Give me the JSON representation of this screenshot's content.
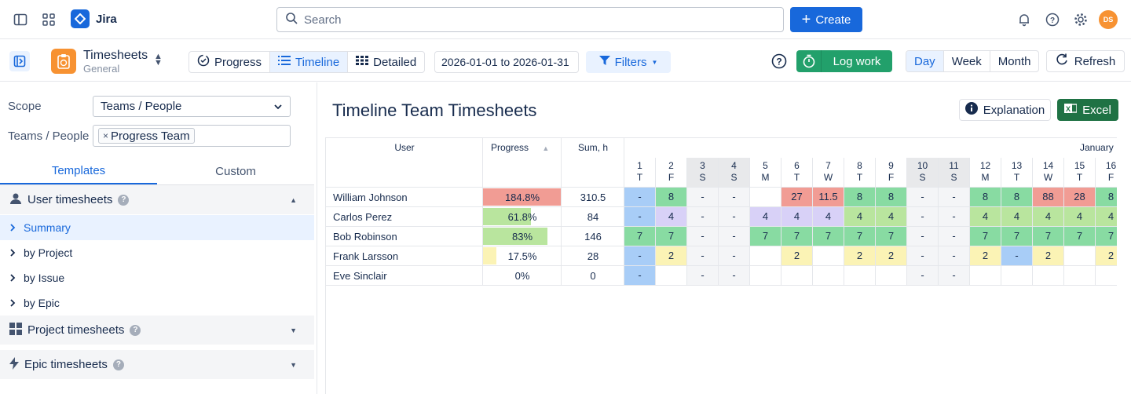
{
  "topbar": {
    "app_name": "Jira",
    "search_placeholder": "Search",
    "create_label": "Create",
    "avatar_initials": "DS"
  },
  "toolbar": {
    "title": "Timesheets",
    "subtitle": "General",
    "views": [
      {
        "label": "Progress",
        "active": false
      },
      {
        "label": "Timeline",
        "active": true
      },
      {
        "label": "Detailed",
        "active": false
      }
    ],
    "date_range": "2026-01-01 to 2026-01-31",
    "filters_label": "Filters",
    "log_work_label": "Log work",
    "periods": [
      {
        "label": "Day",
        "active": true
      },
      {
        "label": "Week",
        "active": false
      },
      {
        "label": "Month",
        "active": false
      }
    ],
    "refresh_label": "Refresh"
  },
  "sidebar": {
    "scope_label": "Scope",
    "scope_value": "Teams / People",
    "teams_label": "Teams / People",
    "teams_chip": "Progress Team",
    "tabs": [
      "Templates",
      "Custom"
    ],
    "sections": {
      "user": "User timesheets",
      "project": "Project timesheets",
      "epic": "Epic timesheets"
    },
    "items": [
      "Summary",
      "by Project",
      "by Issue",
      "by Epic"
    ]
  },
  "main": {
    "title": "Timeline Team Timesheets",
    "explanation_label": "Explanation",
    "excel_label": "Excel",
    "col_user": "User",
    "col_progress": "Progress",
    "col_sum": "Sum, h",
    "month": "January",
    "days": [
      {
        "n": "1",
        "d": "T",
        "we": false
      },
      {
        "n": "2",
        "d": "F",
        "we": false
      },
      {
        "n": "3",
        "d": "S",
        "we": true
      },
      {
        "n": "4",
        "d": "S",
        "we": true
      },
      {
        "n": "5",
        "d": "M",
        "we": false
      },
      {
        "n": "6",
        "d": "T",
        "we": false
      },
      {
        "n": "7",
        "d": "W",
        "we": false
      },
      {
        "n": "8",
        "d": "T",
        "we": false
      },
      {
        "n": "9",
        "d": "F",
        "we": false
      },
      {
        "n": "10",
        "d": "S",
        "we": true
      },
      {
        "n": "11",
        "d": "S",
        "we": true
      },
      {
        "n": "12",
        "d": "M",
        "we": false
      },
      {
        "n": "13",
        "d": "T",
        "we": false
      },
      {
        "n": "14",
        "d": "W",
        "we": false
      },
      {
        "n": "15",
        "d": "T",
        "we": false
      },
      {
        "n": "16",
        "d": "F",
        "we": false
      }
    ],
    "rows": [
      {
        "user": "William Johnson",
        "progress": "184.8%",
        "progress_fraction": 1.0,
        "progress_color": "#f19c94",
        "sum": "310.5",
        "cells": [
          [
            "-",
            "blue"
          ],
          [
            "8",
            "green"
          ],
          [
            "-",
            "we"
          ],
          [
            "-",
            "we"
          ],
          [
            "",
            ""
          ],
          [
            "27",
            "red"
          ],
          [
            "11.5",
            "red"
          ],
          [
            "8",
            "green"
          ],
          [
            "8",
            "green"
          ],
          [
            "-",
            "we"
          ],
          [
            "-",
            "we"
          ],
          [
            "8",
            "green"
          ],
          [
            "8",
            "green"
          ],
          [
            "88",
            "red"
          ],
          [
            "28",
            "red"
          ],
          [
            "8",
            "green"
          ]
        ]
      },
      {
        "user": "Carlos Perez",
        "progress": "61.8%",
        "progress_fraction": 0.618,
        "progress_color": "#b9e59e",
        "sum": "84",
        "cells": [
          [
            "-",
            "blue"
          ],
          [
            "4",
            "purple"
          ],
          [
            "-",
            "we"
          ],
          [
            "-",
            "we"
          ],
          [
            "4",
            "purple"
          ],
          [
            "4",
            "purple"
          ],
          [
            "4",
            "purple"
          ],
          [
            "4",
            "lgreen"
          ],
          [
            "4",
            "lgreen"
          ],
          [
            "-",
            "we"
          ],
          [
            "-",
            "we"
          ],
          [
            "4",
            "lgreen"
          ],
          [
            "4",
            "lgreen"
          ],
          [
            "4",
            "lgreen"
          ],
          [
            "4",
            "lgreen"
          ],
          [
            "4",
            "lgreen"
          ]
        ]
      },
      {
        "user": "Bob Robinson",
        "progress": "83%",
        "progress_fraction": 0.83,
        "progress_color": "#b9e59e",
        "sum": "146",
        "cells": [
          [
            "7",
            "green"
          ],
          [
            "7",
            "green"
          ],
          [
            "-",
            "we"
          ],
          [
            "-",
            "we"
          ],
          [
            "7",
            "green"
          ],
          [
            "7",
            "green"
          ],
          [
            "7",
            "green"
          ],
          [
            "7",
            "green"
          ],
          [
            "7",
            "green"
          ],
          [
            "-",
            "we"
          ],
          [
            "-",
            "we"
          ],
          [
            "7",
            "green"
          ],
          [
            "7",
            "green"
          ],
          [
            "7",
            "green"
          ],
          [
            "7",
            "green"
          ],
          [
            "7",
            "green"
          ]
        ]
      },
      {
        "user": "Frank Larsson",
        "progress": "17.5%",
        "progress_fraction": 0.175,
        "progress_color": "#fbf3b5",
        "sum": "28",
        "cells": [
          [
            "-",
            "blue"
          ],
          [
            "2",
            "yellow"
          ],
          [
            "-",
            "we"
          ],
          [
            "-",
            "we"
          ],
          [
            "",
            ""
          ],
          [
            "2",
            "yellow"
          ],
          [
            "",
            ""
          ],
          [
            "2",
            "yellow"
          ],
          [
            "2",
            "yellow"
          ],
          [
            "-",
            "we"
          ],
          [
            "-",
            "we"
          ],
          [
            "2",
            "yellow"
          ],
          [
            "-",
            "blue"
          ],
          [
            "2",
            "yellow"
          ],
          [
            "",
            ""
          ],
          [
            "2",
            "yellow"
          ]
        ]
      },
      {
        "user": "Eve Sinclair",
        "progress": "0%",
        "progress_fraction": 0,
        "progress_color": "#fbf3b5",
        "sum": "0",
        "cells": [
          [
            "-",
            "blue"
          ],
          [
            "",
            ""
          ],
          [
            "-",
            "we"
          ],
          [
            "-",
            "we"
          ],
          [
            "",
            ""
          ],
          [
            "",
            ""
          ],
          [
            "",
            ""
          ],
          [
            "",
            ""
          ],
          [
            "",
            ""
          ],
          [
            "-",
            "we"
          ],
          [
            "-",
            "we"
          ],
          [
            "",
            ""
          ],
          [
            "",
            ""
          ],
          [
            "",
            ""
          ],
          [
            "",
            ""
          ],
          [
            "",
            ""
          ]
        ]
      }
    ]
  },
  "icons": [
    "sidebar-toggle-icon",
    "app-switcher-icon",
    "search-icon",
    "plus-icon",
    "bell-icon",
    "help-icon",
    "gear-icon",
    "timesheet-icon",
    "check-circle-icon",
    "list-icon",
    "grid-icon",
    "funnel-icon",
    "stopwatch-icon",
    "refresh-icon",
    "info-icon",
    "excel-icon",
    "user-icon",
    "squares-icon",
    "bolt-icon"
  ]
}
